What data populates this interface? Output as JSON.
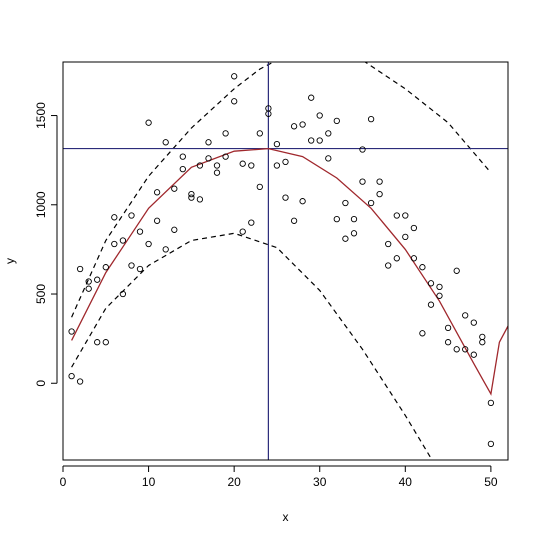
{
  "chart_data": {
    "type": "scatter",
    "title": "",
    "xlabel": "x",
    "ylabel": "y",
    "xlim": [
      0,
      52
    ],
    "ylim": [
      -430,
      1800
    ],
    "xticks": [
      0,
      10,
      20,
      30,
      40,
      50
    ],
    "yticks": [
      0,
      500,
      1000,
      1500
    ],
    "grid": false,
    "legend": "none",
    "colors": {
      "points": "#000000",
      "fit": "#a0282d",
      "bounds": "#000000",
      "reference": "#2b2b7a"
    },
    "reference_lines": {
      "vertical_x": 24,
      "horizontal_y": 1315
    },
    "points": [
      [
        1,
        290
      ],
      [
        1,
        40
      ],
      [
        2,
        640
      ],
      [
        2,
        10
      ],
      [
        3,
        570
      ],
      [
        3,
        530
      ],
      [
        4,
        580
      ],
      [
        4,
        230
      ],
      [
        5,
        650
      ],
      [
        5,
        230
      ],
      [
        6,
        930
      ],
      [
        6,
        780
      ],
      [
        7,
        800
      ],
      [
        7,
        500
      ],
      [
        8,
        940
      ],
      [
        8,
        660
      ],
      [
        9,
        850
      ],
      [
        9,
        640
      ],
      [
        10,
        1460
      ],
      [
        10,
        780
      ],
      [
        11,
        1070
      ],
      [
        11,
        910
      ],
      [
        12,
        1350
      ],
      [
        12,
        750
      ],
      [
        13,
        1090
      ],
      [
        13,
        860
      ],
      [
        14,
        1270
      ],
      [
        14,
        1200
      ],
      [
        15,
        1060
      ],
      [
        15,
        1040
      ],
      [
        16,
        1220
      ],
      [
        16,
        1030
      ],
      [
        17,
        1350
      ],
      [
        17,
        1260
      ],
      [
        18,
        1220
      ],
      [
        18,
        1180
      ],
      [
        19,
        1400
      ],
      [
        19,
        1270
      ],
      [
        20,
        1720
      ],
      [
        20,
        1580
      ],
      [
        21,
        1230
      ],
      [
        21,
        850
      ],
      [
        22,
        1220
      ],
      [
        22,
        900
      ],
      [
        23,
        1400
      ],
      [
        23,
        1100
      ],
      [
        24,
        1540
      ],
      [
        24,
        1510
      ],
      [
        25,
        1340
      ],
      [
        25,
        1220
      ],
      [
        26,
        1240
      ],
      [
        26,
        1040
      ],
      [
        27,
        1440
      ],
      [
        27,
        910
      ],
      [
        28,
        1450
      ],
      [
        28,
        1020
      ],
      [
        29,
        1600
      ],
      [
        29,
        1360
      ],
      [
        30,
        1500
      ],
      [
        30,
        1360
      ],
      [
        31,
        1400
      ],
      [
        31,
        1260
      ],
      [
        32,
        1470
      ],
      [
        32,
        920
      ],
      [
        33,
        1010
      ],
      [
        33,
        810
      ],
      [
        34,
        920
      ],
      [
        34,
        840
      ],
      [
        35,
        1310
      ],
      [
        35,
        1130
      ],
      [
        36,
        1480
      ],
      [
        36,
        1010
      ],
      [
        37,
        1130
      ],
      [
        37,
        1060
      ],
      [
        38,
        780
      ],
      [
        38,
        660
      ],
      [
        39,
        940
      ],
      [
        39,
        700
      ],
      [
        40,
        940
      ],
      [
        40,
        820
      ],
      [
        41,
        870
      ],
      [
        41,
        700
      ],
      [
        42,
        650
      ],
      [
        42,
        280
      ],
      [
        43,
        560
      ],
      [
        43,
        440
      ],
      [
        44,
        540
      ],
      [
        44,
        490
      ],
      [
        45,
        310
      ],
      [
        45,
        230
      ],
      [
        46,
        630
      ],
      [
        46,
        190
      ],
      [
        47,
        380
      ],
      [
        47,
        190
      ],
      [
        48,
        340
      ],
      [
        48,
        160
      ],
      [
        49,
        260
      ],
      [
        49,
        230
      ],
      [
        50,
        -110
      ],
      [
        50,
        -340
      ]
    ],
    "fit_line": [
      [
        1,
        240
      ],
      [
        5,
        620
      ],
      [
        10,
        980
      ],
      [
        15,
        1210
      ],
      [
        20,
        1300
      ],
      [
        24,
        1315
      ],
      [
        28,
        1270
      ],
      [
        32,
        1150
      ],
      [
        36,
        980
      ],
      [
        40,
        750
      ],
      [
        44,
        460
      ],
      [
        48,
        110
      ],
      [
        50,
        -60
      ],
      [
        51,
        230
      ],
      [
        52,
        320
      ]
    ],
    "upper_bound": [
      [
        1,
        370
      ],
      [
        5,
        800
      ],
      [
        10,
        1160
      ],
      [
        15,
        1430
      ],
      [
        20,
        1650
      ],
      [
        23,
        1760
      ],
      [
        25,
        1810
      ],
      [
        30,
        1850
      ],
      [
        35,
        1810
      ],
      [
        40,
        1650
      ],
      [
        45,
        1460
      ],
      [
        50,
        1180
      ]
    ],
    "lower_bound": [
      [
        1,
        90
      ],
      [
        5,
        420
      ],
      [
        10,
        660
      ],
      [
        15,
        800
      ],
      [
        20,
        840
      ],
      [
        25,
        760
      ],
      [
        30,
        520
      ],
      [
        35,
        190
      ],
      [
        40,
        -180
      ],
      [
        43,
        -420
      ]
    ]
  }
}
